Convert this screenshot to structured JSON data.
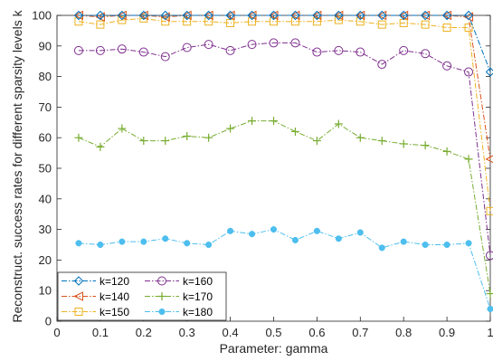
{
  "chart_data": {
    "type": "line",
    "title": "",
    "xlabel": "Parameter: gamma",
    "ylabel": "Reconstruct. success rates for different sparsity levels k",
    "xlim": [
      0,
      1
    ],
    "ylim": [
      0,
      100
    ],
    "xticks": [
      "0",
      "0.1",
      "0.2",
      "0.3",
      "0.4",
      "0.5",
      "0.6",
      "0.7",
      "0.8",
      "0.9",
      "1"
    ],
    "yticks": [
      "0",
      "10",
      "20",
      "30",
      "40",
      "50",
      "60",
      "70",
      "80",
      "90",
      "100"
    ],
    "grid": false,
    "legend_position": "bottom-left",
    "x": [
      0.05,
      0.1,
      0.15,
      0.2,
      0.25,
      0.3,
      0.35,
      0.4,
      0.45,
      0.5,
      0.55,
      0.6,
      0.65,
      0.7,
      0.75,
      0.8,
      0.85,
      0.9,
      0.95,
      1.0
    ],
    "series": [
      {
        "name": "k=120",
        "color": "#0072BD",
        "marker": "diamond",
        "values": [
          100,
          100,
          100,
          100,
          100,
          100,
          100,
          100,
          100,
          100,
          100,
          100,
          100,
          100,
          100,
          100,
          100,
          100,
          100,
          81.5
        ]
      },
      {
        "name": "k=140",
        "color": "#D95319",
        "marker": "triangle-left",
        "values": [
          100,
          99.5,
          100,
          100,
          99.5,
          100,
          100,
          100,
          100,
          100,
          100,
          100,
          100,
          100,
          100,
          100,
          100,
          100,
          99.5,
          53
        ]
      },
      {
        "name": "k=150",
        "color": "#EDB120",
        "marker": "square",
        "values": [
          98,
          97,
          98.5,
          99,
          98,
          98,
          98,
          97.5,
          98,
          98,
          98,
          98,
          98.5,
          98,
          97,
          97.5,
          97,
          96,
          96,
          36
        ]
      },
      {
        "name": "k=160",
        "color": "#7E2F8E",
        "marker": "circle",
        "values": [
          88.5,
          88.5,
          89,
          88,
          86.5,
          89.5,
          90.5,
          88.5,
          90.5,
          91,
          91,
          88,
          88.5,
          88,
          84,
          88.5,
          87.5,
          83.5,
          81.5,
          21.5
        ]
      },
      {
        "name": "k=170",
        "color": "#77AC30",
        "marker": "plus",
        "values": [
          60,
          57,
          63,
          59,
          59,
          60.5,
          60,
          63,
          65.5,
          65.5,
          62,
          59,
          64.5,
          60,
          59,
          58,
          57.5,
          55.5,
          53,
          9
        ]
      },
      {
        "name": "k=180",
        "color": "#4DBEEE",
        "marker": "filled-circle",
        "values": [
          25.5,
          25,
          26,
          26,
          27,
          25.5,
          25,
          29.5,
          28.5,
          30,
          26.5,
          29.5,
          27,
          29,
          24,
          26,
          25,
          25,
          25.5,
          4
        ]
      }
    ]
  }
}
